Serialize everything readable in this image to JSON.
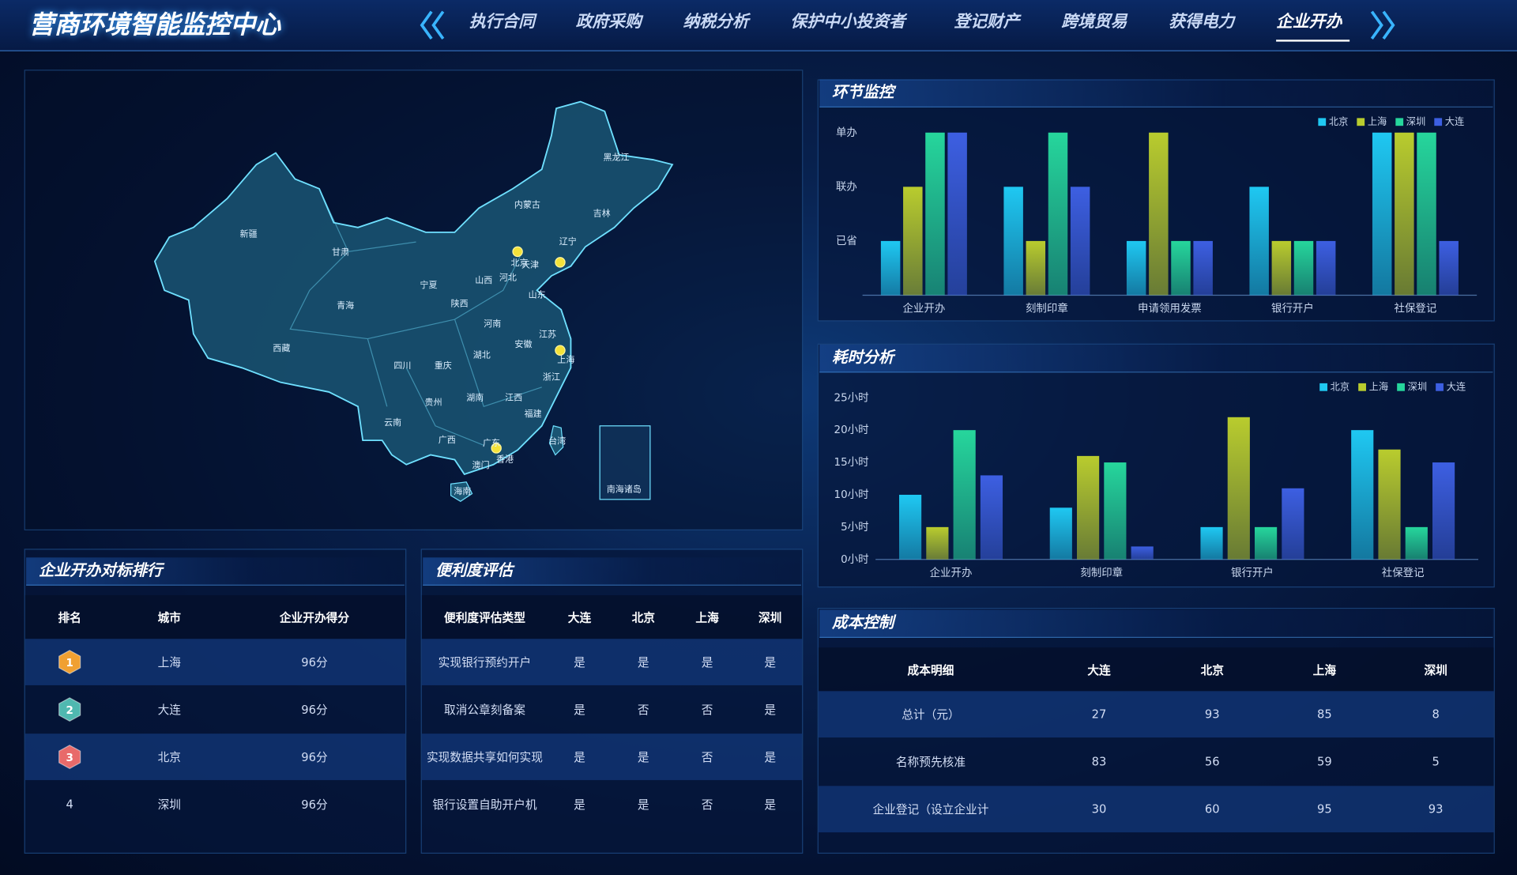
{
  "header": {
    "title": "营商环境智能监控中心"
  },
  "nav": {
    "items": [
      "执行合同",
      "政府采购",
      "纳税分析",
      "保护中小投资者",
      "登记财产",
      "跨境贸易",
      "获得电力",
      "企业开办"
    ],
    "active": 7
  },
  "map": {
    "labels": [
      "新疆",
      "甘肃",
      "内蒙古",
      "黑龙江",
      "吉林",
      "辽宁",
      "北京",
      "天津",
      "河北",
      "宁夏",
      "山西",
      "山东",
      "青海",
      "陕西",
      "河南",
      "江苏",
      "安徽",
      "西藏",
      "四川",
      "重庆",
      "湖北",
      "上海",
      "浙江",
      "贵州",
      "湖南",
      "江西",
      "云南",
      "福建",
      "广西",
      "广东",
      "台湾",
      "香港",
      "澳门",
      "海南",
      "南海诸岛"
    ]
  },
  "ranking": {
    "title": "企业开办对标排行",
    "columns": [
      "排名",
      "城市",
      "企业开办得分"
    ],
    "rows": [
      [
        1,
        "上海",
        "96分"
      ],
      [
        2,
        "大连",
        "96分"
      ],
      [
        3,
        "北京",
        "96分"
      ],
      [
        4,
        "深圳",
        "96分"
      ]
    ]
  },
  "convenience": {
    "title": "便利度评估",
    "columns": [
      "便利度评估类型",
      "大连",
      "北京",
      "上海",
      "深圳"
    ],
    "rows": [
      [
        "实现银行预约开户",
        "是",
        "是",
        "是",
        "是"
      ],
      [
        "取消公章刻备案",
        "是",
        "否",
        "否",
        "是"
      ],
      [
        "实现数据共享如何实现",
        "是",
        "是",
        "否",
        "是"
      ],
      [
        "银行设置自助开户机",
        "是",
        "是",
        "否",
        "是"
      ]
    ]
  },
  "cost": {
    "title": "成本控制",
    "columns": [
      "成本明细",
      "大连",
      "北京",
      "上海",
      "深圳"
    ],
    "rows": [
      [
        "总计（元）",
        27,
        93,
        85,
        8
      ],
      [
        "名称预先核准",
        83,
        56,
        59,
        5
      ],
      [
        "企业登记（设立企业计",
        30,
        60,
        95,
        93
      ]
    ]
  },
  "chart_data": [
    {
      "type": "bar",
      "title": "环节监控",
      "categories": [
        "企业开办",
        "刻制印章",
        "申请领用发票",
        "银行开户",
        "社保登记"
      ],
      "series": [
        {
          "name": "北京",
          "color": "#1fc8f2",
          "values": [
            1,
            2,
            1,
            2,
            3
          ]
        },
        {
          "name": "上海",
          "color": "#b9cc2e",
          "values": [
            2,
            1,
            3,
            1,
            3
          ]
        },
        {
          "name": "深圳",
          "color": "#26d69c",
          "values": [
            3,
            3,
            1,
            1,
            3
          ]
        },
        {
          "name": "大连",
          "color": "#3d5fe2",
          "values": [
            3,
            2,
            1,
            1,
            1
          ]
        }
      ],
      "ylim": [
        0,
        3
      ],
      "yticks": [
        {
          "value": 1,
          "label": "已省"
        },
        {
          "value": 2,
          "label": "联办"
        },
        {
          "value": 3,
          "label": "单办"
        }
      ],
      "legend": "top-right",
      "grid": false
    },
    {
      "type": "bar",
      "title": "耗时分析",
      "categories": [
        "企业开办",
        "刻制印章",
        "银行开户",
        "社保登记"
      ],
      "series": [
        {
          "name": "北京",
          "color": "#1fc8f2",
          "values": [
            10,
            8,
            5,
            20
          ]
        },
        {
          "name": "上海",
          "color": "#b9cc2e",
          "values": [
            5,
            16,
            22,
            17
          ]
        },
        {
          "name": "深圳",
          "color": "#26d69c",
          "values": [
            20,
            15,
            5,
            5
          ]
        },
        {
          "name": "大连",
          "color": "#3d5fe2",
          "values": [
            13,
            2,
            11,
            15
          ]
        }
      ],
      "ylim": [
        0,
        25
      ],
      "yticks": [
        {
          "value": 0,
          "label": "0小时"
        },
        {
          "value": 5,
          "label": "5小时"
        },
        {
          "value": 10,
          "label": "10小时"
        },
        {
          "value": 15,
          "label": "15小时"
        },
        {
          "value": 20,
          "label": "20小时"
        },
        {
          "value": 25,
          "label": "25小时"
        }
      ],
      "legend": "top-right",
      "grid": false
    }
  ]
}
